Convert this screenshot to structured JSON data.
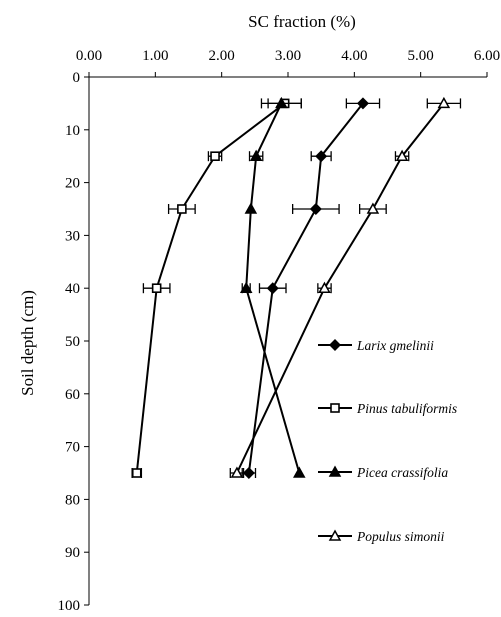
{
  "chart_data": {
    "type": "line",
    "title": "",
    "xlabel": "SC fraction (%)",
    "ylabel": "Soil depth (cm)",
    "xlim": [
      0,
      6
    ],
    "ylim": [
      0,
      100
    ],
    "y_inverted": true,
    "x_axis_position": "top",
    "xticks": [
      "0.00",
      "1.00",
      "2.00",
      "3.00",
      "4.00",
      "5.00",
      "6.00"
    ],
    "yticks": [
      "0",
      "10",
      "20",
      "30",
      "40",
      "50",
      "60",
      "70",
      "80",
      "90",
      "100"
    ],
    "grid": false,
    "legend_position": "right",
    "depths": [
      5,
      15,
      25,
      40,
      75
    ],
    "series": [
      {
        "name": "Larix gmelinii",
        "marker": "diamond-filled",
        "values": [
          4.13,
          3.5,
          3.42,
          2.77,
          2.41
        ],
        "errors": [
          0.25,
          0.15,
          0.35,
          0.2,
          0.1
        ]
      },
      {
        "name": "Pinus tabuliformis",
        "marker": "square-open",
        "values": [
          2.95,
          1.9,
          1.4,
          1.02,
          0.72
        ],
        "errors": [
          0.25,
          0.1,
          0.2,
          0.2,
          0.07
        ]
      },
      {
        "name": "Picea crassifolia",
        "marker": "triangle-filled",
        "values": [
          2.9,
          2.52,
          2.44,
          2.37,
          3.17
        ],
        "errors": [
          0.3,
          0.1,
          0.0,
          0.06,
          0.0
        ]
      },
      {
        "name": "Populus simonii",
        "marker": "triangle-open",
        "values": [
          5.35,
          4.72,
          4.28,
          3.55,
          2.23
        ],
        "errors": [
          0.25,
          0.1,
          0.2,
          0.1,
          0.1
        ]
      }
    ]
  }
}
